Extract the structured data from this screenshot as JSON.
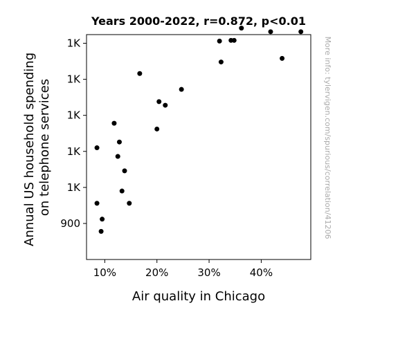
{
  "chart_data": {
    "type": "scatter",
    "title": "Years 2000-2022, r=0.872, p<0.01",
    "xlabel": "Air quality in Chicago",
    "ylabel_lines": [
      "Annual US household spending",
      "on telephone services"
    ],
    "xlim": [
      0.065,
      0.495
    ],
    "ylim": [
      850,
      1162
    ],
    "x_ticks": [
      {
        "value": 0.1,
        "label": "10%"
      },
      {
        "value": 0.2,
        "label": "20%"
      },
      {
        "value": 0.3,
        "label": "30%"
      },
      {
        "value": 0.4,
        "label": "40%"
      }
    ],
    "y_ticks": [
      {
        "value": 900,
        "label": "900"
      },
      {
        "value": 950,
        "label": "1K"
      },
      {
        "value": 1000,
        "label": "1K"
      },
      {
        "value": 1050,
        "label": "1K"
      },
      {
        "value": 1100,
        "label": "1K"
      },
      {
        "value": 1150,
        "label": "1K"
      }
    ],
    "points": [
      {
        "x": 0.085,
        "y": 1005
      },
      {
        "x": 0.085,
        "y": 928
      },
      {
        "x": 0.093,
        "y": 889
      },
      {
        "x": 0.095,
        "y": 906
      },
      {
        "x": 0.118,
        "y": 1039
      },
      {
        "x": 0.125,
        "y": 993
      },
      {
        "x": 0.128,
        "y": 1013
      },
      {
        "x": 0.133,
        "y": 945
      },
      {
        "x": 0.138,
        "y": 973
      },
      {
        "x": 0.147,
        "y": 928
      },
      {
        "x": 0.167,
        "y": 1108
      },
      {
        "x": 0.2,
        "y": 1031
      },
      {
        "x": 0.204,
        "y": 1069
      },
      {
        "x": 0.216,
        "y": 1064
      },
      {
        "x": 0.247,
        "y": 1086
      },
      {
        "x": 0.32,
        "y": 1153
      },
      {
        "x": 0.323,
        "y": 1124
      },
      {
        "x": 0.342,
        "y": 1154
      },
      {
        "x": 0.348,
        "y": 1154
      },
      {
        "x": 0.362,
        "y": 1171
      },
      {
        "x": 0.418,
        "y": 1166
      },
      {
        "x": 0.44,
        "y": 1129
      },
      {
        "x": 0.476,
        "y": 1166
      }
    ],
    "marker_color": "#000000",
    "grid": false,
    "legend": "none"
  },
  "watermark": "More info: tylervigen.com/spurious/correlation/41206"
}
